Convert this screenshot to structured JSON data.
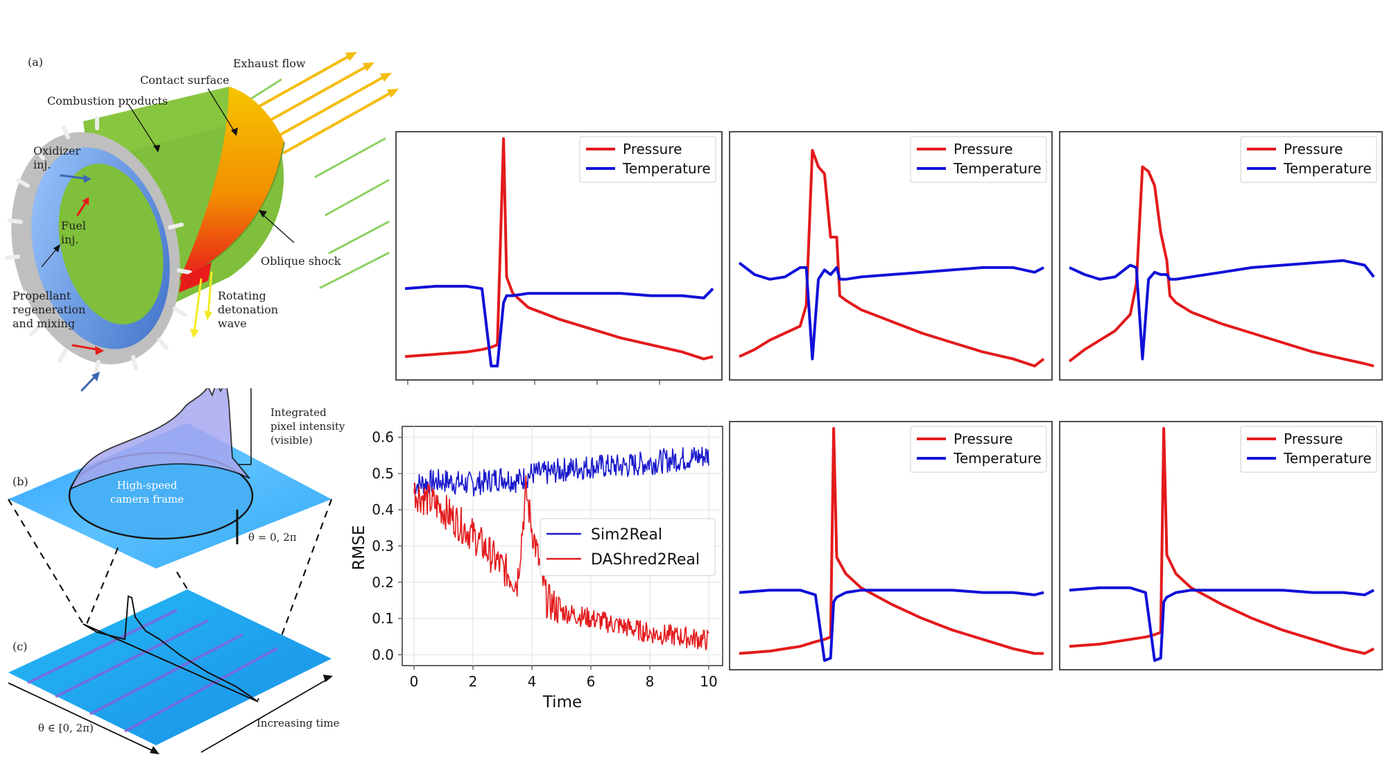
{
  "schematic": {
    "panel_label": "(a)",
    "labels": {
      "exhaust": "Exhaust flow",
      "contact": "Contact surface",
      "combustion": "Combustion products",
      "oxidizer_1": "Oxidizer",
      "oxidizer_2": "inj.",
      "fuel_1": "Fuel",
      "fuel_2": "inj.",
      "oblique": "Oblique shock",
      "prop_1": "Propellant",
      "prop_2": "regeneration",
      "prop_3": "and mixing",
      "rot_1": "Rotating",
      "rot_2": "detonation",
      "rot_3": "wave"
    }
  },
  "camera": {
    "panel_b": "(b)",
    "panel_c": "(c)",
    "intensity_1": "Integrated",
    "intensity_2": "pixel intensity",
    "intensity_3": "(visible)",
    "frame_1": "High-speed",
    "frame_2": "camera frame",
    "theta_zero": "θ = 0, 2π",
    "theta_range": "θ ∈ [0, 2π)",
    "time_axis": "Increasing time"
  },
  "colors": {
    "pressure": "#e31a1c",
    "temperature": "#1010d8",
    "sim2real": "#1a1acc",
    "dashred2real": "#e31a1c"
  },
  "chart_data": [
    {
      "id": "wave1",
      "type": "line",
      "legend": [
        "Pressure",
        "Temperature"
      ],
      "x": [
        0,
        0.1,
        0.2,
        0.25,
        0.28,
        0.3,
        0.32,
        0.33,
        0.35,
        0.4,
        0.5,
        0.6,
        0.7,
        0.8,
        0.9,
        0.97,
        1.0
      ],
      "series": [
        {
          "name": "Pressure",
          "values": [
            0.07,
            0.08,
            0.09,
            0.1,
            0.11,
            0.12,
            1.05,
            0.41,
            0.34,
            0.28,
            0.23,
            0.19,
            0.15,
            0.12,
            0.09,
            0.06,
            0.07
          ]
        },
        {
          "name": "Temperature",
          "values": [
            0.36,
            0.37,
            0.37,
            0.36,
            0.03,
            0.03,
            0.3,
            0.33,
            0.33,
            0.34,
            0.34,
            0.34,
            0.34,
            0.33,
            0.33,
            0.32,
            0.36
          ]
        }
      ]
    },
    {
      "id": "wave2",
      "type": "line",
      "legend": [
        "Pressure",
        "Temperature"
      ],
      "x": [
        0,
        0.05,
        0.1,
        0.15,
        0.2,
        0.22,
        0.24,
        0.26,
        0.28,
        0.3,
        0.32,
        0.33,
        0.35,
        0.4,
        0.5,
        0.6,
        0.7,
        0.8,
        0.9,
        0.97,
        1.0
      ],
      "series": [
        {
          "name": "Pressure",
          "values": [
            0.07,
            0.1,
            0.14,
            0.17,
            0.2,
            0.29,
            0.95,
            0.88,
            0.85,
            0.58,
            0.58,
            0.33,
            0.31,
            0.27,
            0.22,
            0.17,
            0.13,
            0.09,
            0.06,
            0.03,
            0.06
          ]
        },
        {
          "name": "Temperature",
          "values": [
            0.47,
            0.42,
            0.4,
            0.41,
            0.45,
            0.45,
            0.06,
            0.4,
            0.44,
            0.42,
            0.45,
            0.4,
            0.4,
            0.41,
            0.42,
            0.43,
            0.44,
            0.45,
            0.45,
            0.43,
            0.45
          ]
        }
      ]
    },
    {
      "id": "wave3",
      "type": "line",
      "legend": [
        "Pressure",
        "Temperature"
      ],
      "x": [
        0,
        0.05,
        0.1,
        0.15,
        0.2,
        0.22,
        0.24,
        0.26,
        0.28,
        0.3,
        0.32,
        0.33,
        0.35,
        0.4,
        0.5,
        0.6,
        0.7,
        0.8,
        0.9,
        0.97,
        1.0
      ],
      "series": [
        {
          "name": "Pressure",
          "values": [
            0.05,
            0.1,
            0.14,
            0.18,
            0.25,
            0.38,
            0.88,
            0.86,
            0.8,
            0.6,
            0.48,
            0.33,
            0.3,
            0.26,
            0.21,
            0.17,
            0.13,
            0.09,
            0.06,
            0.04,
            0.03
          ]
        },
        {
          "name": "Temperature",
          "values": [
            0.45,
            0.42,
            0.4,
            0.41,
            0.46,
            0.45,
            0.06,
            0.4,
            0.43,
            0.42,
            0.42,
            0.4,
            0.4,
            0.41,
            0.43,
            0.45,
            0.46,
            0.47,
            0.48,
            0.46,
            0.41
          ]
        }
      ]
    },
    {
      "id": "rmse",
      "type": "line",
      "xlabel": "Time",
      "ylabel": "RMSE",
      "xlim": [
        0,
        10
      ],
      "ylim": [
        -0.03,
        0.63
      ],
      "xticks": [
        "0",
        "2",
        "4",
        "6",
        "8",
        "10"
      ],
      "yticks": [
        "0.0",
        "0.1",
        "0.2",
        "0.3",
        "0.4",
        "0.5",
        "0.6"
      ],
      "legend": [
        "Sim2Real",
        "DAShred2Real"
      ],
      "x": [
        0,
        1,
        2,
        3,
        3.5,
        3.8,
        4,
        4.5,
        5,
        6,
        7,
        8,
        9,
        10
      ],
      "series": [
        {
          "name": "Sim2Real",
          "values": [
            0.47,
            0.48,
            0.47,
            0.49,
            0.48,
            0.49,
            0.5,
            0.5,
            0.51,
            0.52,
            0.52,
            0.53,
            0.54,
            0.55
          ]
        },
        {
          "name": "DAShred2Real",
          "values": [
            0.45,
            0.4,
            0.33,
            0.24,
            0.2,
            0.45,
            0.35,
            0.15,
            0.12,
            0.1,
            0.08,
            0.06,
            0.05,
            0.04
          ]
        }
      ]
    },
    {
      "id": "wave4",
      "type": "line",
      "legend": [
        "Pressure",
        "Temperature"
      ],
      "x": [
        0,
        0.1,
        0.2,
        0.25,
        0.28,
        0.3,
        0.31,
        0.32,
        0.35,
        0.4,
        0.5,
        0.6,
        0.7,
        0.8,
        0.9,
        0.97,
        1.0
      ],
      "series": [
        {
          "name": "Pressure",
          "values": [
            0.04,
            0.05,
            0.07,
            0.09,
            0.1,
            0.11,
            1.05,
            0.45,
            0.38,
            0.32,
            0.25,
            0.19,
            0.14,
            0.1,
            0.06,
            0.04,
            0.04
          ]
        },
        {
          "name": "Temperature",
          "values": [
            0.3,
            0.31,
            0.31,
            0.29,
            0.01,
            0.02,
            0.26,
            0.28,
            0.3,
            0.31,
            0.31,
            0.31,
            0.31,
            0.3,
            0.3,
            0.29,
            0.3
          ]
        }
      ]
    },
    {
      "id": "wave5",
      "type": "line",
      "legend": [
        "Pressure",
        "Temperature"
      ],
      "x": [
        0,
        0.1,
        0.2,
        0.25,
        0.28,
        0.3,
        0.31,
        0.32,
        0.35,
        0.4,
        0.5,
        0.6,
        0.7,
        0.8,
        0.9,
        0.97,
        1.0
      ],
      "series": [
        {
          "name": "Pressure",
          "values": [
            0.07,
            0.08,
            0.1,
            0.11,
            0.12,
            0.13,
            1.05,
            0.46,
            0.38,
            0.32,
            0.25,
            0.19,
            0.14,
            0.1,
            0.06,
            0.04,
            0.06
          ]
        },
        {
          "name": "Temperature",
          "values": [
            0.31,
            0.32,
            0.32,
            0.3,
            0.01,
            0.02,
            0.26,
            0.28,
            0.3,
            0.31,
            0.31,
            0.31,
            0.31,
            0.3,
            0.3,
            0.29,
            0.31
          ]
        }
      ]
    }
  ]
}
